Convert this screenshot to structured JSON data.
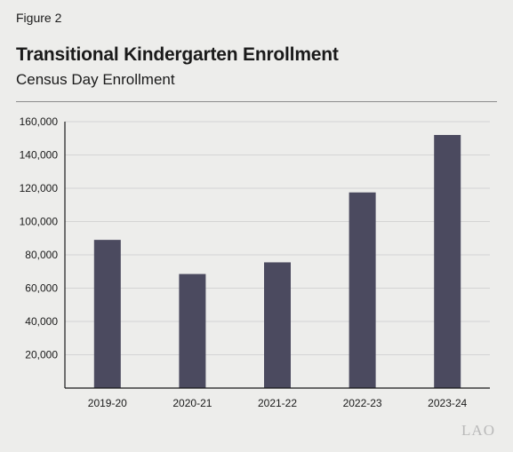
{
  "figure_label": "Figure 2",
  "logo_text": "LAO",
  "colors": {
    "bar": "#4b4a5f",
    "grid": "#d4d4d4",
    "axis": "#1a1a1a",
    "background": "#ededeb"
  },
  "chart_data": {
    "type": "bar",
    "title": "Transitional Kindergarten Enrollment",
    "subtitle": "Census Day Enrollment",
    "categories": [
      "2019-20",
      "2020-21",
      "2021-22",
      "2022-23",
      "2023-24"
    ],
    "values": [
      89000,
      68500,
      75500,
      117500,
      152000
    ],
    "ylim": [
      0,
      160000
    ],
    "yticks": [
      20000,
      40000,
      60000,
      80000,
      100000,
      120000,
      140000,
      160000
    ],
    "ytick_labels": [
      "20,000",
      "40,000",
      "60,000",
      "80,000",
      "100,000",
      "120,000",
      "140,000",
      "160,000"
    ],
    "xlabel": "",
    "ylabel": "",
    "grid": true,
    "legend": "none"
  }
}
